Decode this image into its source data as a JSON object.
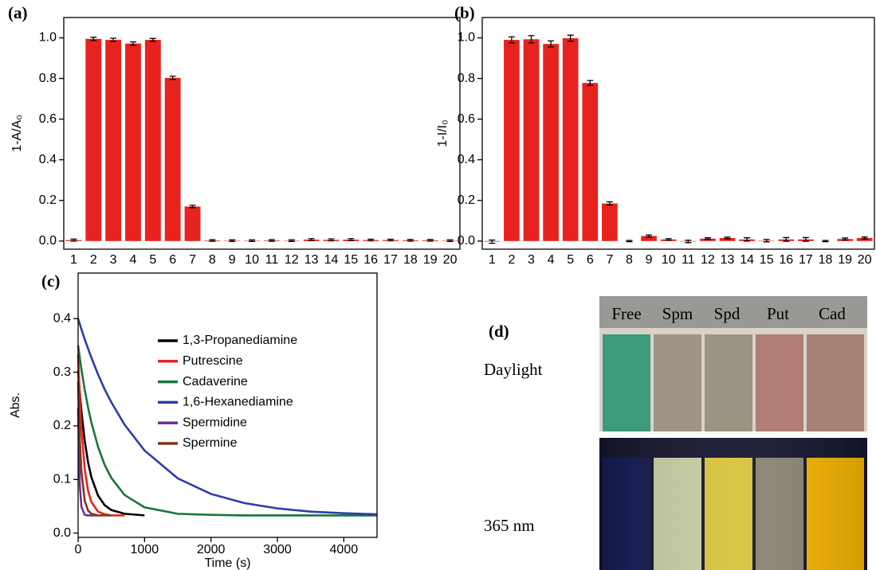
{
  "chart_data": [
    {
      "type": "bar",
      "title": "(a)",
      "y_label": "1-A/A₀",
      "categories": [
        "1",
        "2",
        "3",
        "4",
        "5",
        "6",
        "7",
        "8",
        "9",
        "10",
        "11",
        "12",
        "13",
        "14",
        "15",
        "16",
        "17",
        "18",
        "19",
        "20"
      ],
      "values": [
        0.005,
        0.995,
        0.99,
        0.972,
        0.99,
        0.803,
        0.17,
        0.003,
        0.002,
        0.002,
        0.003,
        0.002,
        0.007,
        0.006,
        0.007,
        0.005,
        0.005,
        0.004,
        0.004,
        0.002
      ],
      "errors": [
        0.005,
        0.008,
        0.008,
        0.008,
        0.007,
        0.008,
        0.006,
        0.004,
        0.004,
        0.004,
        0.004,
        0.004,
        0.005,
        0.005,
        0.005,
        0.004,
        0.004,
        0.004,
        0.004,
        0.004
      ],
      "color": "#e8231f",
      "ylim": [
        -0.04,
        1.1
      ],
      "yticks": [
        {
          "value": 0,
          "label": "0.0"
        },
        0.2,
        0.4,
        0.6,
        0.8,
        {
          "value": 1,
          "label": "1.0"
        }
      ]
    },
    {
      "type": "bar",
      "title": "(b)",
      "y_label": "1-I/I₀",
      "categories": [
        "1",
        "2",
        "3",
        "4",
        "5",
        "6",
        "7",
        "8",
        "9",
        "10",
        "11",
        "12",
        "13",
        "14",
        "15",
        "16",
        "17",
        "18",
        "19",
        "20"
      ],
      "values": [
        -0.003,
        0.99,
        0.993,
        0.97,
        0.998,
        0.778,
        0.185,
        0.0,
        0.025,
        0.008,
        -0.002,
        0.012,
        0.015,
        0.008,
        0.002,
        0.008,
        0.008,
        0.0,
        0.01,
        0.015
      ],
      "errors": [
        0.008,
        0.015,
        0.018,
        0.015,
        0.015,
        0.012,
        0.008,
        0.003,
        0.005,
        0.004,
        0.006,
        0.004,
        0.004,
        0.008,
        0.006,
        0.009,
        0.009,
        0.003,
        0.005,
        0.005
      ],
      "color": "#e8231f",
      "ylim": [
        -0.04,
        1.1
      ],
      "yticks": [
        {
          "value": 0,
          "label": "0.0"
        },
        0.2,
        0.4,
        0.6,
        0.8,
        {
          "value": 1,
          "label": "1.0"
        }
      ]
    },
    {
      "type": "line",
      "title": "(c)",
      "x_label": "Time (s)",
      "y_label": "Abs.",
      "legend": "upper right",
      "x": [
        0,
        25,
        50,
        100,
        150,
        200,
        300,
        400,
        500,
        700,
        1000,
        1500,
        2000,
        2500,
        3000,
        3500,
        4000,
        4500
      ],
      "series": [
        {
          "name": "1,3-Propanediamine",
          "color": "#000000",
          "values": [
            0.303,
            0.261,
            0.227,
            0.172,
            0.132,
            0.104,
            0.07,
            0.052,
            0.043,
            0.036,
            0.033,
            null,
            null,
            null,
            null,
            null,
            null,
            null
          ]
        },
        {
          "name": "Putrescine",
          "color": "#e8231f",
          "values": [
            0.333,
            0.252,
            0.194,
            0.119,
            0.079,
            0.058,
            0.04,
            0.035,
            0.033,
            0.033,
            null,
            null,
            null,
            null,
            null,
            null,
            null,
            null
          ]
        },
        {
          "name": "Cadaverine",
          "color": "#17753a",
          "values": [
            0.35,
            0.327,
            0.305,
            0.267,
            0.234,
            0.206,
            0.161,
            0.127,
            0.103,
            0.071,
            0.048,
            0.036,
            0.034,
            0.033,
            0.033,
            0.033,
            0.033,
            0.033
          ]
        },
        {
          "name": "1,6-Hexanediamine",
          "color": "#2e3ca8",
          "values": [
            0.4,
            0.39,
            0.38,
            0.361,
            0.344,
            0.327,
            0.296,
            0.268,
            0.244,
            0.202,
            0.154,
            0.102,
            0.073,
            0.056,
            0.046,
            0.04,
            0.037,
            0.035
          ]
        },
        {
          "name": "Spermidine",
          "color": "#7a2a9a",
          "values": [
            0.233,
            0.09,
            0.049,
            0.034,
            0.033,
            0.033,
            0.033,
            null,
            null,
            null,
            null,
            null,
            null,
            null,
            null,
            null,
            null,
            null
          ]
        },
        {
          "name": "Spermine",
          "color": "#7b3a18",
          "values": [
            0.283,
            0.176,
            0.115,
            0.06,
            0.042,
            0.036,
            0.033,
            0.033,
            0.033,
            null,
            null,
            null,
            null,
            null,
            null,
            null,
            null,
            null
          ]
        }
      ],
      "xlim": [
        0,
        4500
      ],
      "xticks": [
        0,
        1000,
        2000,
        3000,
        4000
      ],
      "ylim": [
        -0.008,
        0.485
      ],
      "yticks": [
        {
          "value": 0,
          "label": "0.0"
        },
        0.1,
        0.2,
        0.3,
        0.4
      ]
    }
  ],
  "photo_panel": {
    "label": "(d)",
    "rows": [
      "Daylight",
      "365 nm"
    ],
    "vials": [
      "Free",
      "Spm",
      "Spd",
      "Put",
      "Cad"
    ]
  }
}
